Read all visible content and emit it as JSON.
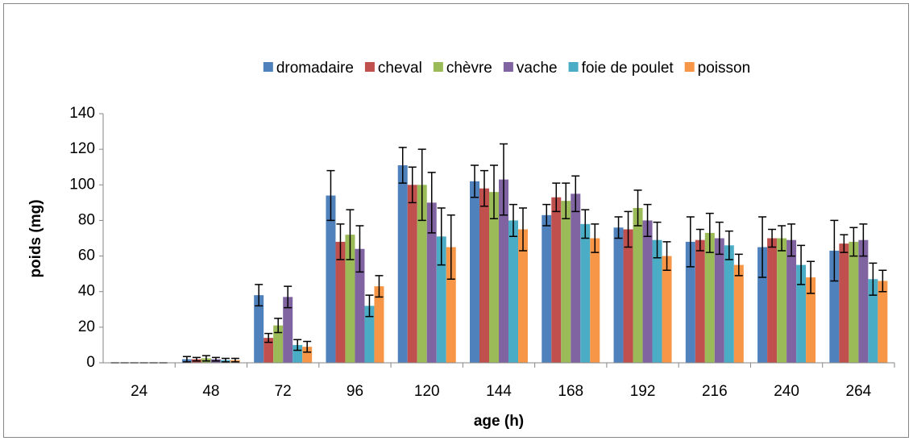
{
  "chart_data": {
    "type": "bar",
    "y_label": "poids (mg)",
    "x_label": "age (h)",
    "categories": [
      "24",
      "48",
      "72",
      "96",
      "120",
      "144",
      "168",
      "192",
      "216",
      "240",
      "264"
    ],
    "series": [
      {
        "name": "dromadaire",
        "color": "#4f81bd",
        "values": [
          0,
          2,
          38,
          94,
          111,
          102,
          83,
          76,
          68,
          65,
          63
        ],
        "errors": [
          0,
          1.5,
          6,
          14,
          10,
          9,
          6,
          6,
          14,
          17,
          17
        ]
      },
      {
        "name": "cheval",
        "color": "#c0504d",
        "values": [
          0,
          2,
          14,
          68,
          100,
          98,
          93,
          75,
          69,
          70,
          67
        ],
        "errors": [
          0,
          1,
          2.5,
          10,
          10,
          10,
          8,
          10,
          6,
          5,
          5
        ]
      },
      {
        "name": "chèvre",
        "color": "#9bbb59",
        "values": [
          0,
          2.5,
          21,
          72,
          100,
          96,
          91,
          87,
          73,
          70,
          68
        ],
        "errors": [
          0,
          1.5,
          4,
          14,
          20,
          15,
          10,
          10,
          11,
          7,
          8
        ]
      },
      {
        "name": "vache",
        "color": "#8064a2",
        "values": [
          0,
          2,
          37,
          64,
          90,
          103,
          95,
          80,
          70,
          69,
          69
        ],
        "errors": [
          0,
          1,
          6,
          13,
          17,
          20,
          10,
          9,
          9,
          9,
          9
        ]
      },
      {
        "name": "foie de poulet",
        "color": "#4bacc6",
        "values": [
          0,
          1.5,
          10,
          32,
          71,
          80,
          78,
          69,
          66,
          55,
          47
        ],
        "errors": [
          0,
          1,
          3,
          6,
          16,
          9,
          8,
          10,
          8,
          11,
          9
        ]
      },
      {
        "name": "poisson",
        "color": "#f79646",
        "values": [
          0,
          1.5,
          9,
          43,
          65,
          75,
          70,
          60,
          55,
          48,
          46
        ],
        "errors": [
          0,
          1,
          3,
          6,
          18,
          12,
          8,
          8,
          6,
          9,
          6
        ]
      }
    ],
    "ylim": [
      0,
      140
    ],
    "yticks": [
      0,
      20,
      40,
      60,
      80,
      100,
      120,
      140
    ],
    "legend": "top"
  }
}
